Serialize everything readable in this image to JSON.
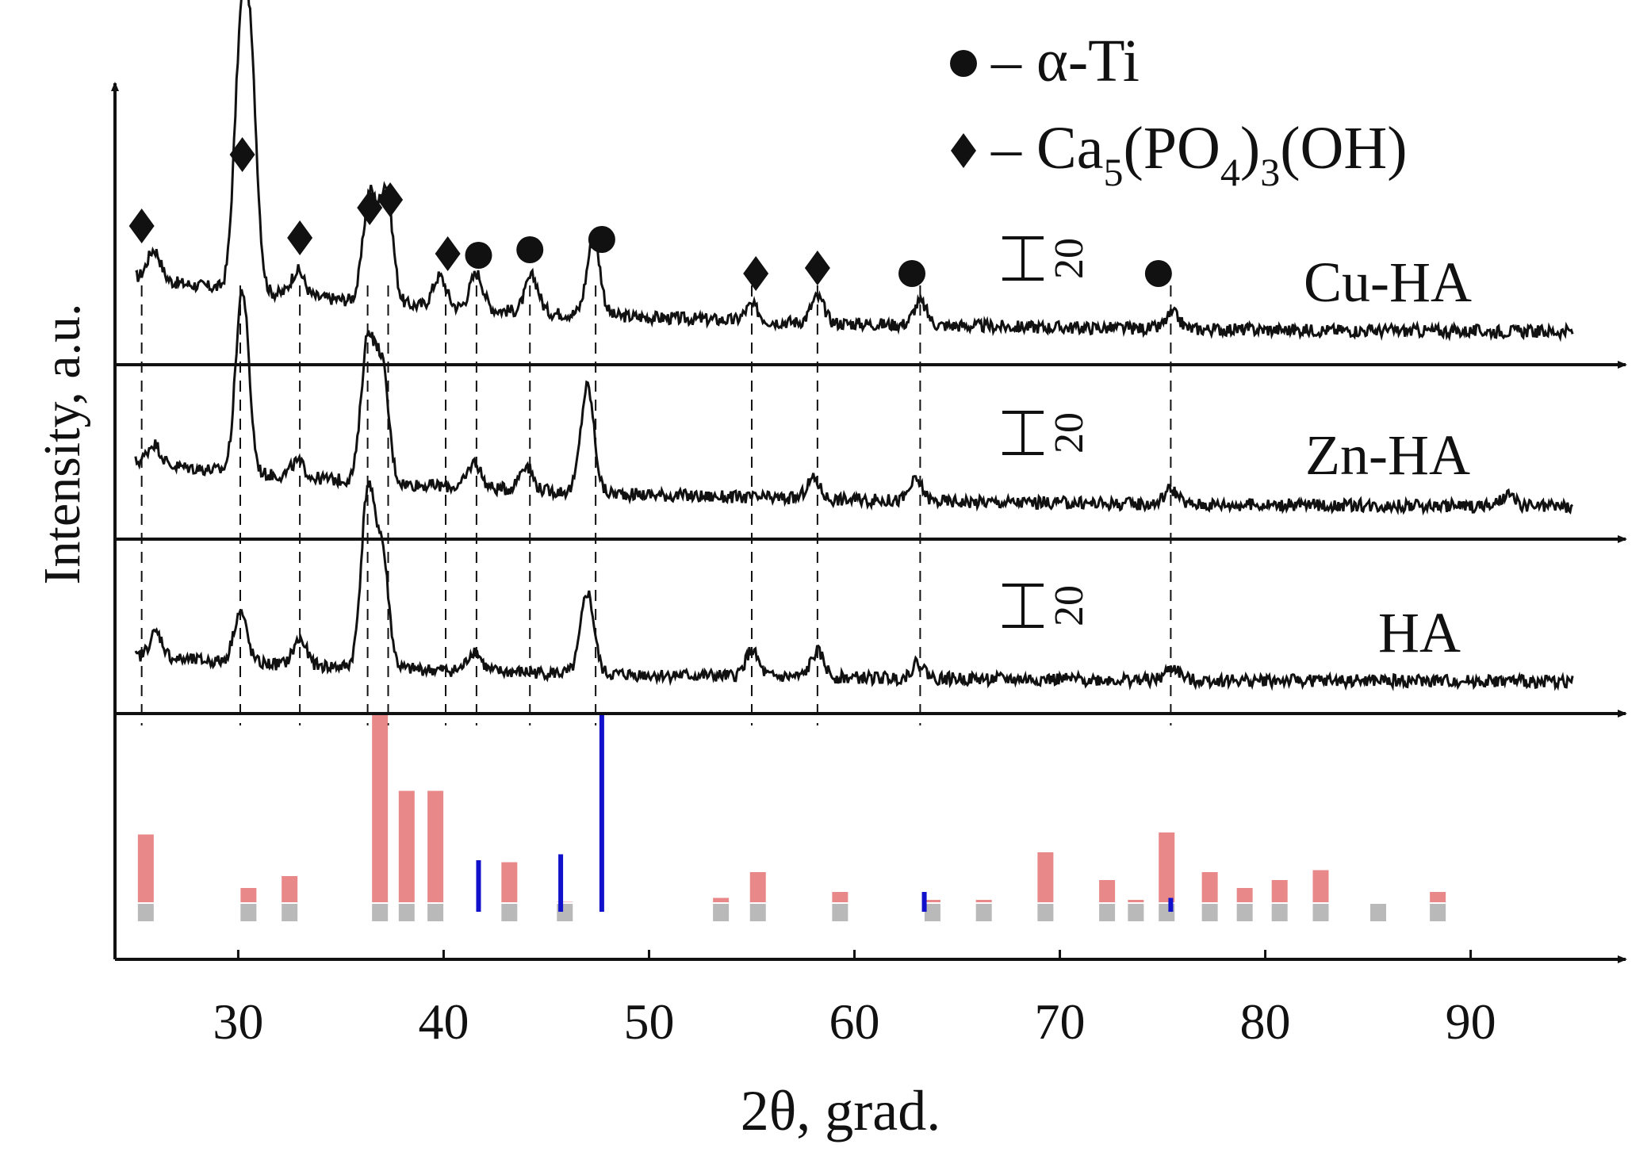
{
  "chart_data": {
    "type": "line",
    "title": "",
    "xlabel": "2θ, grad.",
    "ylabel": "Intensity, a.u.",
    "xlim": [
      24,
      96
    ],
    "xticks": [
      30,
      40,
      50,
      60,
      70,
      80,
      90
    ],
    "grid": false,
    "legend": {
      "placement": "top-right",
      "entries": [
        {
          "marker": "circle",
          "label": "– α-Ti"
        },
        {
          "marker": "diamond",
          "label_parts": [
            "– Ca",
            "5",
            "(PO",
            "4",
            ")",
            "3",
            "(OH)"
          ]
        }
      ]
    },
    "scale_bar_value": "20",
    "series": [
      {
        "name": "Cu-HA",
        "peaks": [
          {
            "x": 25.9,
            "h": 12
          },
          {
            "x": 30.1,
            "h": 85
          },
          {
            "x": 30.6,
            "h": 82
          },
          {
            "x": 32.9,
            "h": 10
          },
          {
            "x": 36.4,
            "h": 42
          },
          {
            "x": 37.2,
            "h": 45
          },
          {
            "x": 39.8,
            "h": 12
          },
          {
            "x": 41.6,
            "h": 14
          },
          {
            "x": 44.3,
            "h": 14
          },
          {
            "x": 47.3,
            "h": 30
          },
          {
            "x": 55.0,
            "h": 6
          },
          {
            "x": 58.2,
            "h": 10
          },
          {
            "x": 63.2,
            "h": 9
          },
          {
            "x": 75.5,
            "h": 6
          }
        ],
        "baseline": 22,
        "offset": 0
      },
      {
        "name": "Zn-HA",
        "peaks": [
          {
            "x": 25.9,
            "h": 8
          },
          {
            "x": 30.2,
            "h": 72
          },
          {
            "x": 32.9,
            "h": 6
          },
          {
            "x": 36.3,
            "h": 55
          },
          {
            "x": 37.0,
            "h": 45
          },
          {
            "x": 41.5,
            "h": 10
          },
          {
            "x": 44.0,
            "h": 10
          },
          {
            "x": 47.0,
            "h": 42
          },
          {
            "x": 58.0,
            "h": 8
          },
          {
            "x": 63.0,
            "h": 8
          },
          {
            "x": 75.4,
            "h": 6
          },
          {
            "x": 91.8,
            "h": 4
          }
        ],
        "baseline": 18,
        "offset": 0
      },
      {
        "name": "HA",
        "peaks": [
          {
            "x": 26.0,
            "h": 10
          },
          {
            "x": 30.1,
            "h": 20
          },
          {
            "x": 33.0,
            "h": 10
          },
          {
            "x": 36.3,
            "h": 68
          },
          {
            "x": 37.0,
            "h": 45
          },
          {
            "x": 41.5,
            "h": 8
          },
          {
            "x": 47.0,
            "h": 32
          },
          {
            "x": 55.0,
            "h": 10
          },
          {
            "x": 58.2,
            "h": 10
          },
          {
            "x": 63.1,
            "h": 6
          },
          {
            "x": 75.5,
            "h": 5
          }
        ],
        "baseline": 10,
        "offset": 0
      }
    ],
    "markers": [
      {
        "type": "diamond",
        "x": 25.3
      },
      {
        "type": "diamond",
        "x": 30.2
      },
      {
        "type": "diamond",
        "x": 33.0
      },
      {
        "type": "diamond",
        "x": 36.4
      },
      {
        "type": "diamond",
        "x": 37.4
      },
      {
        "type": "diamond",
        "x": 40.2
      },
      {
        "type": "circle",
        "x": 41.7
      },
      {
        "type": "circle",
        "x": 44.2
      },
      {
        "type": "circle",
        "x": 47.7
      },
      {
        "type": "diamond",
        "x": 55.2
      },
      {
        "type": "diamond",
        "x": 58.2
      },
      {
        "type": "circle",
        "x": 62.8
      },
      {
        "type": "circle",
        "x": 74.8
      }
    ],
    "dashed_lines": [
      25.3,
      30.1,
      33.0,
      36.3,
      37.3,
      40.1,
      41.6,
      44.2,
      47.4,
      55.0,
      58.2,
      63.2,
      75.4
    ],
    "reference_bars": {
      "blue": [
        {
          "x": 41.7,
          "h": 0.26
        },
        {
          "x": 45.7,
          "h": 0.29
        },
        {
          "x": 47.7,
          "h": 1.0
        },
        {
          "x": 63.4,
          "h": 0.1
        },
        {
          "x": 75.4,
          "h": 0.07
        }
      ],
      "red": [
        {
          "x": 25.5,
          "h": 0.39
        },
        {
          "x": 30.5,
          "h": 0.12
        },
        {
          "x": 32.5,
          "h": 0.18
        },
        {
          "x": 36.9,
          "h": 1.0
        },
        {
          "x": 38.2,
          "h": 0.61
        },
        {
          "x": 39.6,
          "h": 0.61
        },
        {
          "x": 43.2,
          "h": 0.25
        },
        {
          "x": 45.9,
          "h": 0.05
        },
        {
          "x": 53.5,
          "h": 0.07
        },
        {
          "x": 55.3,
          "h": 0.2
        },
        {
          "x": 59.3,
          "h": 0.1
        },
        {
          "x": 63.8,
          "h": 0.06
        },
        {
          "x": 66.3,
          "h": 0.06
        },
        {
          "x": 69.3,
          "h": 0.3
        },
        {
          "x": 72.3,
          "h": 0.16
        },
        {
          "x": 73.7,
          "h": 0.06
        },
        {
          "x": 75.2,
          "h": 0.4
        },
        {
          "x": 77.3,
          "h": 0.2
        },
        {
          "x": 79.0,
          "h": 0.12
        },
        {
          "x": 80.7,
          "h": 0.16
        },
        {
          "x": 82.7,
          "h": 0.21
        },
        {
          "x": 85.5,
          "h": 0.04
        },
        {
          "x": 88.4,
          "h": 0.1
        }
      ]
    }
  }
}
